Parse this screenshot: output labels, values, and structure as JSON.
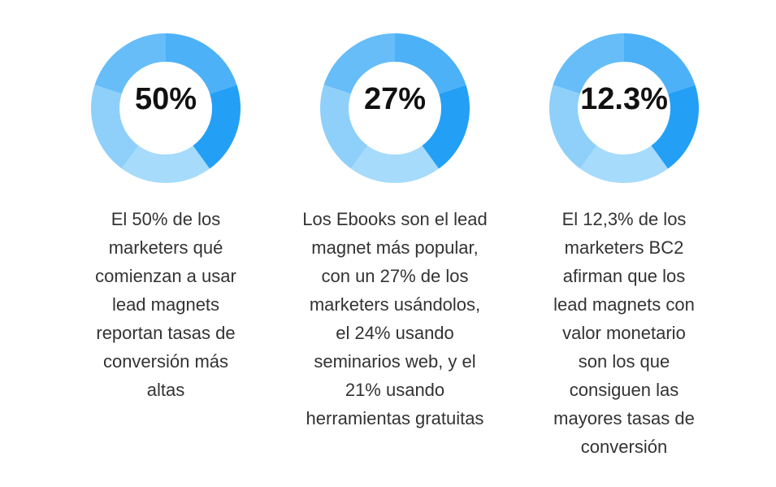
{
  "stats": [
    {
      "value": "50%",
      "description": [
        "El 50% de los",
        "marketers qué",
        "comienzan a usar",
        "lead magnets",
        "reportan tasas de",
        "conversión más",
        "altas"
      ]
    },
    {
      "value": "27%",
      "description": [
        "Los Ebooks son el lead",
        "magnet más popular,",
        "con un 27% de los",
        "marketers usándolos,",
        "el 24% usando",
        "seminarios web, y el",
        "21% usando",
        "herramientas gratuitas"
      ]
    },
    {
      "value": "12.3%",
      "description": [
        "El 12,3% de los",
        "marketers BC2",
        "afirman que los",
        "lead magnets con",
        "valor monetario",
        "son los que",
        "consiguen las",
        "mayores tasas de",
        "conversión"
      ]
    }
  ]
}
